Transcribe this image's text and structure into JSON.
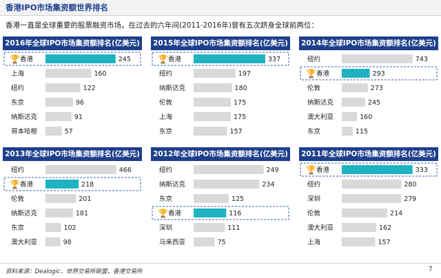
{
  "page": {
    "title": "香港IPO市场集资额世界排名",
    "intro": "香港一直是全球重要的股票融资市场，在过去的六年间(2011-2016年)曾有五次跻身全球前两位：",
    "source": "资料来源：Dealogic，世界交易所联盟，香港交易所",
    "page_number": "7"
  },
  "colors": {
    "title_bar": "#1e3f8c",
    "highlight_bar": "#1fb3c2",
    "bar": "#d9d9d9",
    "highlight_border": "#3a5fb0",
    "trophy": "#e1a800"
  },
  "chart_data": [
    {
      "type": "bar",
      "title": "2016年全球IPO市场集资额排名(亿美元)",
      "categories": [
        "香港",
        "上海",
        "纽约",
        "东京",
        "纳斯达克",
        "哥本哈根"
      ],
      "values": [
        245,
        160,
        122,
        96,
        91,
        57
      ],
      "highlight": "香港",
      "xlim": [
        0,
        260
      ]
    },
    {
      "type": "bar",
      "title": "2015年全球IPO市场集资额排名(亿美元)",
      "categories": [
        "香港",
        "纽约",
        "纳斯达克",
        "伦敦",
        "上海",
        "东京"
      ],
      "values": [
        337,
        197,
        180,
        175,
        175,
        157
      ],
      "highlight": "香港",
      "xlim": [
        0,
        350
      ]
    },
    {
      "type": "bar",
      "title": "2014年全球IPO市场集资额排名(亿美元)",
      "categories": [
        "纽约",
        "香港",
        "伦敦",
        "纳斯达克",
        "澳大利亚",
        "东京"
      ],
      "values": [
        743,
        293,
        273,
        245,
        160,
        115
      ],
      "highlight": "香港",
      "xlim": [
        0,
        780
      ]
    },
    {
      "type": "bar",
      "title": "2013年全球IPO市场集资额排名(亿美元)",
      "categories": [
        "纽约",
        "香港",
        "伦敦",
        "纳斯达克",
        "东京",
        "澳大利亚"
      ],
      "values": [
        466,
        218,
        201,
        181,
        102,
        98
      ],
      "highlight": "香港",
      "xlim": [
        0,
        490
      ]
    },
    {
      "type": "bar",
      "title": "2012年全球IPO市场集资额排名(亿美元)",
      "categories": [
        "纽约",
        "纳斯达克",
        "东京",
        "香港",
        "深圳",
        "马来西亚"
      ],
      "values": [
        249,
        234,
        125,
        116,
        111,
        75
      ],
      "highlight": "香港",
      "xlim": [
        0,
        265
      ]
    },
    {
      "type": "bar",
      "title": "2011年全球IPO市场集资额排名(亿美元)",
      "categories": [
        "香港",
        "纽约",
        "深圳",
        "伦敦",
        "澳大利亚",
        "上海"
      ],
      "values": [
        333,
        280,
        279,
        214,
        162,
        157
      ],
      "highlight": "香港",
      "xlim": [
        0,
        350
      ]
    }
  ]
}
